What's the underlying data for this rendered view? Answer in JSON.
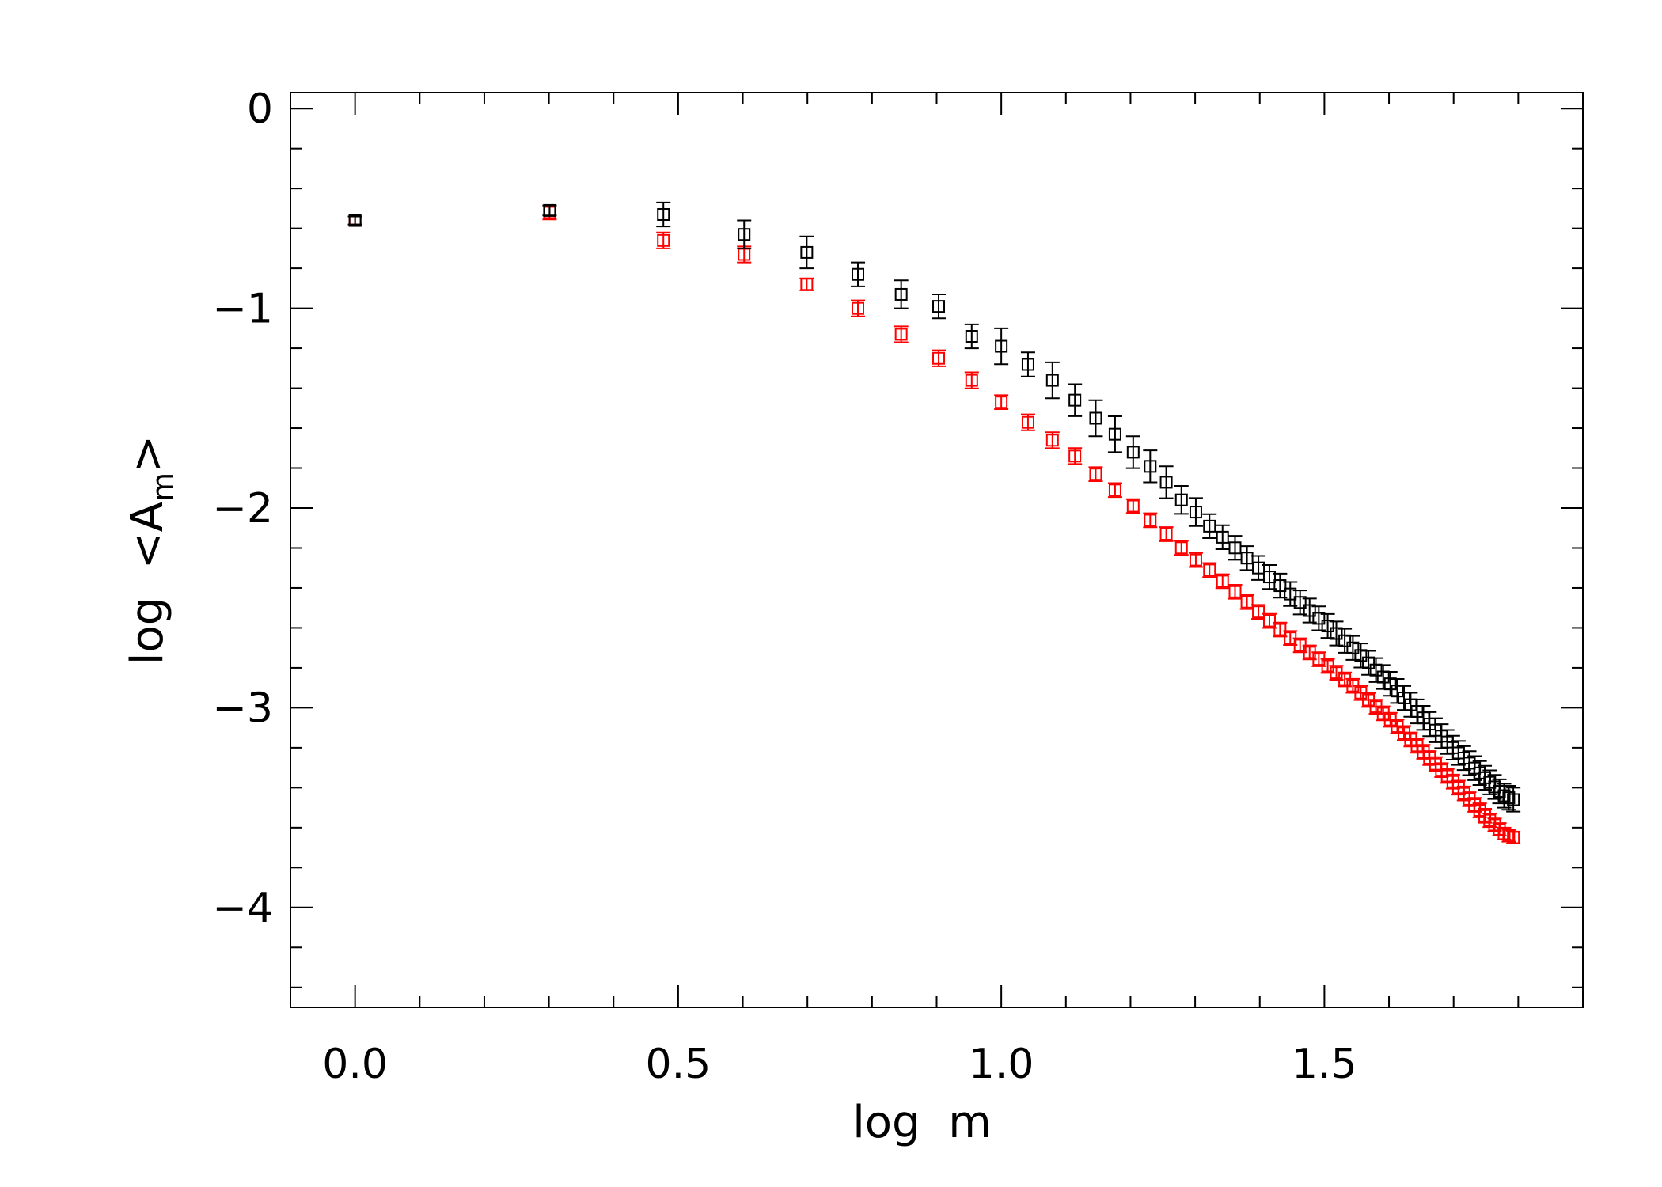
{
  "chart_data": {
    "type": "scatter",
    "title": "",
    "xlabel": "log  m",
    "ylabel_main": "log  <A",
    "ylabel_sub": "m",
    "ylabel_end": ">",
    "xlim": [
      -0.1,
      1.9
    ],
    "ylim": [
      -4.5,
      0.08
    ],
    "grid": false,
    "legend": "none",
    "x_ticks": [
      0.0,
      0.5,
      1.0,
      1.5
    ],
    "x_tick_labels": [
      "0.0",
      "0.5",
      "1.0",
      "1.5"
    ],
    "x_minor_step": 0.1,
    "y_ticks": [
      0,
      -1,
      -2,
      -3,
      -4
    ],
    "y_tick_labels": [
      "0",
      "−1",
      "−2",
      "−3",
      "−4"
    ],
    "y_minor_step": 0.2,
    "marker": "square",
    "series": [
      {
        "color": "#000000",
        "m_from": 1,
        "m_to": 62,
        "anchors": [
          [
            0.0,
            -0.56,
            0.02
          ],
          [
            0.301,
            -0.51,
            0.025
          ],
          [
            0.477,
            -0.53,
            0.06
          ],
          [
            0.602,
            -0.63,
            0.07
          ],
          [
            0.699,
            -0.72,
            0.08
          ],
          [
            0.778,
            -0.83,
            0.06
          ],
          [
            0.845,
            -0.93,
            0.07
          ],
          [
            0.903,
            -0.99,
            0.06
          ],
          [
            0.954,
            -1.14,
            0.06
          ],
          [
            1.0,
            -1.19,
            0.09
          ],
          [
            1.041,
            -1.28,
            0.06
          ],
          [
            1.079,
            -1.36,
            0.09
          ],
          [
            1.114,
            -1.46,
            0.08
          ],
          [
            1.146,
            -1.55,
            0.09
          ],
          [
            1.176,
            -1.63,
            0.09
          ],
          [
            1.204,
            -1.72,
            0.08
          ],
          [
            1.23,
            -1.79,
            0.08
          ],
          [
            1.255,
            -1.87,
            0.08
          ],
          [
            1.279,
            -1.96,
            0.07
          ],
          [
            1.301,
            -2.02,
            0.07
          ],
          [
            1.322,
            -2.09,
            0.06
          ],
          [
            1.362,
            -2.2,
            0.06
          ],
          [
            1.398,
            -2.3,
            0.06
          ],
          [
            1.447,
            -2.43,
            0.06
          ],
          [
            1.505,
            -2.59,
            0.06
          ],
          [
            1.544,
            -2.7,
            0.06
          ],
          [
            1.602,
            -2.88,
            0.06
          ],
          [
            1.653,
            -3.05,
            0.06
          ],
          [
            1.699,
            -3.2,
            0.06
          ],
          [
            1.748,
            -3.35,
            0.06
          ],
          [
            1.778,
            -3.44,
            0.06
          ],
          [
            1.792,
            -3.46,
            0.06
          ]
        ]
      },
      {
        "color": "#ff0000",
        "m_from": 1,
        "m_to": 62,
        "anchors": [
          [
            0.0,
            -0.56,
            0.02
          ],
          [
            0.301,
            -0.52,
            0.035
          ],
          [
            0.477,
            -0.66,
            0.04
          ],
          [
            0.602,
            -0.73,
            0.04
          ],
          [
            0.699,
            -0.88,
            0.03
          ],
          [
            0.778,
            -1.0,
            0.04
          ],
          [
            0.845,
            -1.13,
            0.04
          ],
          [
            0.903,
            -1.25,
            0.04
          ],
          [
            0.954,
            -1.36,
            0.04
          ],
          [
            1.0,
            -1.47,
            0.035
          ],
          [
            1.041,
            -1.57,
            0.04
          ],
          [
            1.079,
            -1.66,
            0.04
          ],
          [
            1.114,
            -1.74,
            0.04
          ],
          [
            1.146,
            -1.83,
            0.035
          ],
          [
            1.176,
            -1.91,
            0.035
          ],
          [
            1.204,
            -1.99,
            0.035
          ],
          [
            1.23,
            -2.06,
            0.035
          ],
          [
            1.255,
            -2.13,
            0.035
          ],
          [
            1.279,
            -2.2,
            0.035
          ],
          [
            1.301,
            -2.26,
            0.035
          ],
          [
            1.322,
            -2.31,
            0.035
          ],
          [
            1.362,
            -2.42,
            0.035
          ],
          [
            1.398,
            -2.52,
            0.035
          ],
          [
            1.447,
            -2.65,
            0.035
          ],
          [
            1.505,
            -2.79,
            0.035
          ],
          [
            1.544,
            -2.89,
            0.035
          ],
          [
            1.602,
            -3.06,
            0.035
          ],
          [
            1.653,
            -3.22,
            0.035
          ],
          [
            1.699,
            -3.37,
            0.035
          ],
          [
            1.748,
            -3.54,
            0.035
          ],
          [
            1.778,
            -3.63,
            0.03
          ],
          [
            1.792,
            -3.65,
            0.03
          ]
        ]
      }
    ]
  }
}
